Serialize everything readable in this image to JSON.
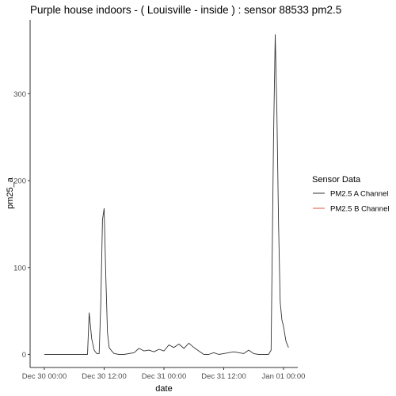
{
  "chart_data": {
    "type": "line",
    "title": "Purple house indoors - ( Louisville - inside ) : sensor 88533 pm2.5",
    "xlabel": "date",
    "ylabel": "pm25_a",
    "x_ticks": [
      "Dec 30 00:00",
      "Dec 30 12:00",
      "Dec 31 00:00",
      "Dec 31 12:00",
      "Jan 01 00:00"
    ],
    "y_ticks": [
      0,
      100,
      200,
      300
    ],
    "xlim": [
      "Dec 30 00:00",
      "Jan 01 00:00"
    ],
    "ylim": [
      -15,
      385
    ],
    "grid": false,
    "legend": {
      "title": "Sensor Data",
      "position": "right",
      "entries": [
        {
          "label": "PM2.5 A Channel",
          "color": "#333333"
        },
        {
          "label": "PM2.5 B Channel",
          "color": "#e8533f"
        }
      ]
    },
    "series": [
      {
        "name": "PM2.5 A Channel",
        "color": "#333333",
        "x": [
          "Dec 30 00:00",
          "Dec 30 04:00",
          "Dec 30 08:00",
          "Dec 30 08:40",
          "Dec 30 09:00",
          "Dec 30 09:30",
          "Dec 30 10:00",
          "Dec 30 10:30",
          "Dec 30 11:00",
          "Dec 30 11:20",
          "Dec 30 11:40",
          "Dec 30 12:00",
          "Dec 30 12:20",
          "Dec 30 12:40",
          "Dec 30 13:00",
          "Dec 30 13:30",
          "Dec 30 14:00",
          "Dec 30 15:00",
          "Dec 30 16:00",
          "Dec 30 18:00",
          "Dec 30 19:00",
          "Dec 30 20:00",
          "Dec 30 21:00",
          "Dec 30 22:00",
          "Dec 30 23:00",
          "Dec 31 00:00",
          "Dec 31 01:00",
          "Dec 31 02:00",
          "Dec 31 03:00",
          "Dec 31 04:00",
          "Dec 31 05:00",
          "Dec 31 06:00",
          "Dec 31 07:00",
          "Dec 31 08:00",
          "Dec 31 09:00",
          "Dec 31 10:00",
          "Dec 31 11:00",
          "Dec 31 12:00",
          "Dec 31 14:00",
          "Dec 31 16:00",
          "Dec 31 17:00",
          "Dec 31 18:00",
          "Dec 31 19:00",
          "Dec 31 20:00",
          "Dec 31 21:00",
          "Dec 31 21:30",
          "Dec 31 22:00",
          "Dec 31 22:20",
          "Dec 31 22:40",
          "Dec 31 23:00",
          "Dec 31 23:20",
          "Dec 31 23:40",
          "Jan 01 00:00",
          "Jan 01 00:30",
          "Jan 01 01:00"
        ],
        "values": [
          0,
          0,
          0,
          0,
          48,
          18,
          5,
          1,
          1,
          60,
          155,
          168,
          90,
          25,
          8,
          4,
          1,
          0,
          0,
          2,
          7,
          4,
          5,
          3,
          6,
          4,
          11,
          8,
          12,
          7,
          13,
          8,
          4,
          0,
          0,
          2,
          0,
          1,
          3,
          1,
          5,
          1,
          0,
          0,
          0,
          5,
          250,
          368,
          280,
          150,
          60,
          40,
          32,
          15,
          8
        ]
      },
      {
        "name": "PM2.5 B Channel",
        "color": "#e8533f",
        "x": [],
        "values": []
      }
    ]
  }
}
